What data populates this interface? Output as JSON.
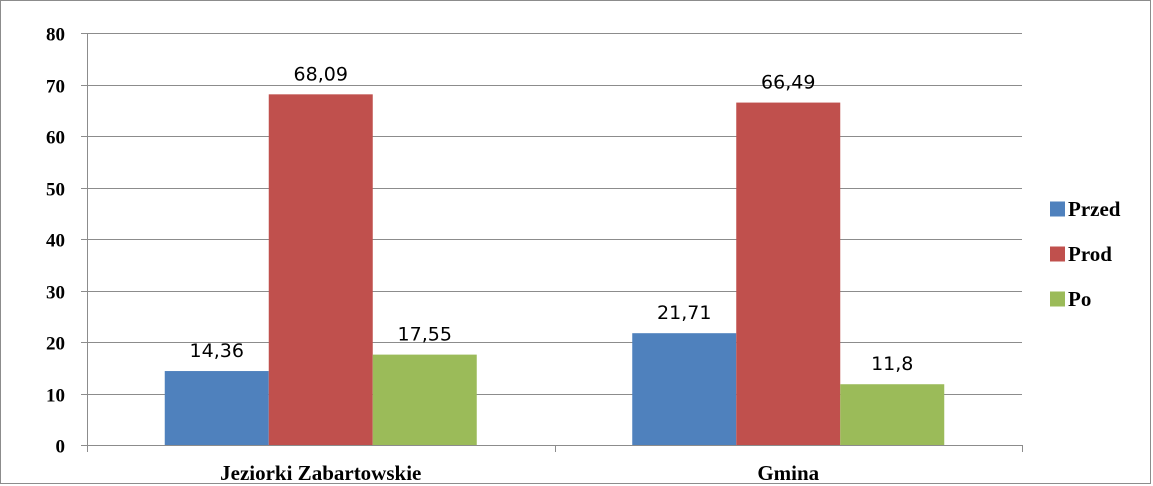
{
  "chart_data": {
    "type": "bar",
    "categories": [
      "Jeziorki Zabartowskie",
      "Gmina"
    ],
    "series": [
      {
        "name": "Przed",
        "color": "#4f81bd",
        "values": [
          14.36,
          21.71
        ],
        "labels": [
          "14,36",
          "21,71"
        ]
      },
      {
        "name": "Prod",
        "color": "#c0504d",
        "values": [
          68.09,
          66.49
        ],
        "labels": [
          "68,09",
          "66,49"
        ]
      },
      {
        "name": "Po",
        "color": "#9bbb59",
        "values": [
          17.55,
          11.8
        ],
        "labels": [
          "17,55",
          "11,8"
        ]
      }
    ],
    "ylim": [
      0,
      80
    ],
    "yticks": [
      0,
      10,
      20,
      30,
      40,
      50,
      60,
      70,
      80
    ],
    "grid": true,
    "legend_position": "right",
    "title": "",
    "xlabel": "",
    "ylabel": ""
  }
}
